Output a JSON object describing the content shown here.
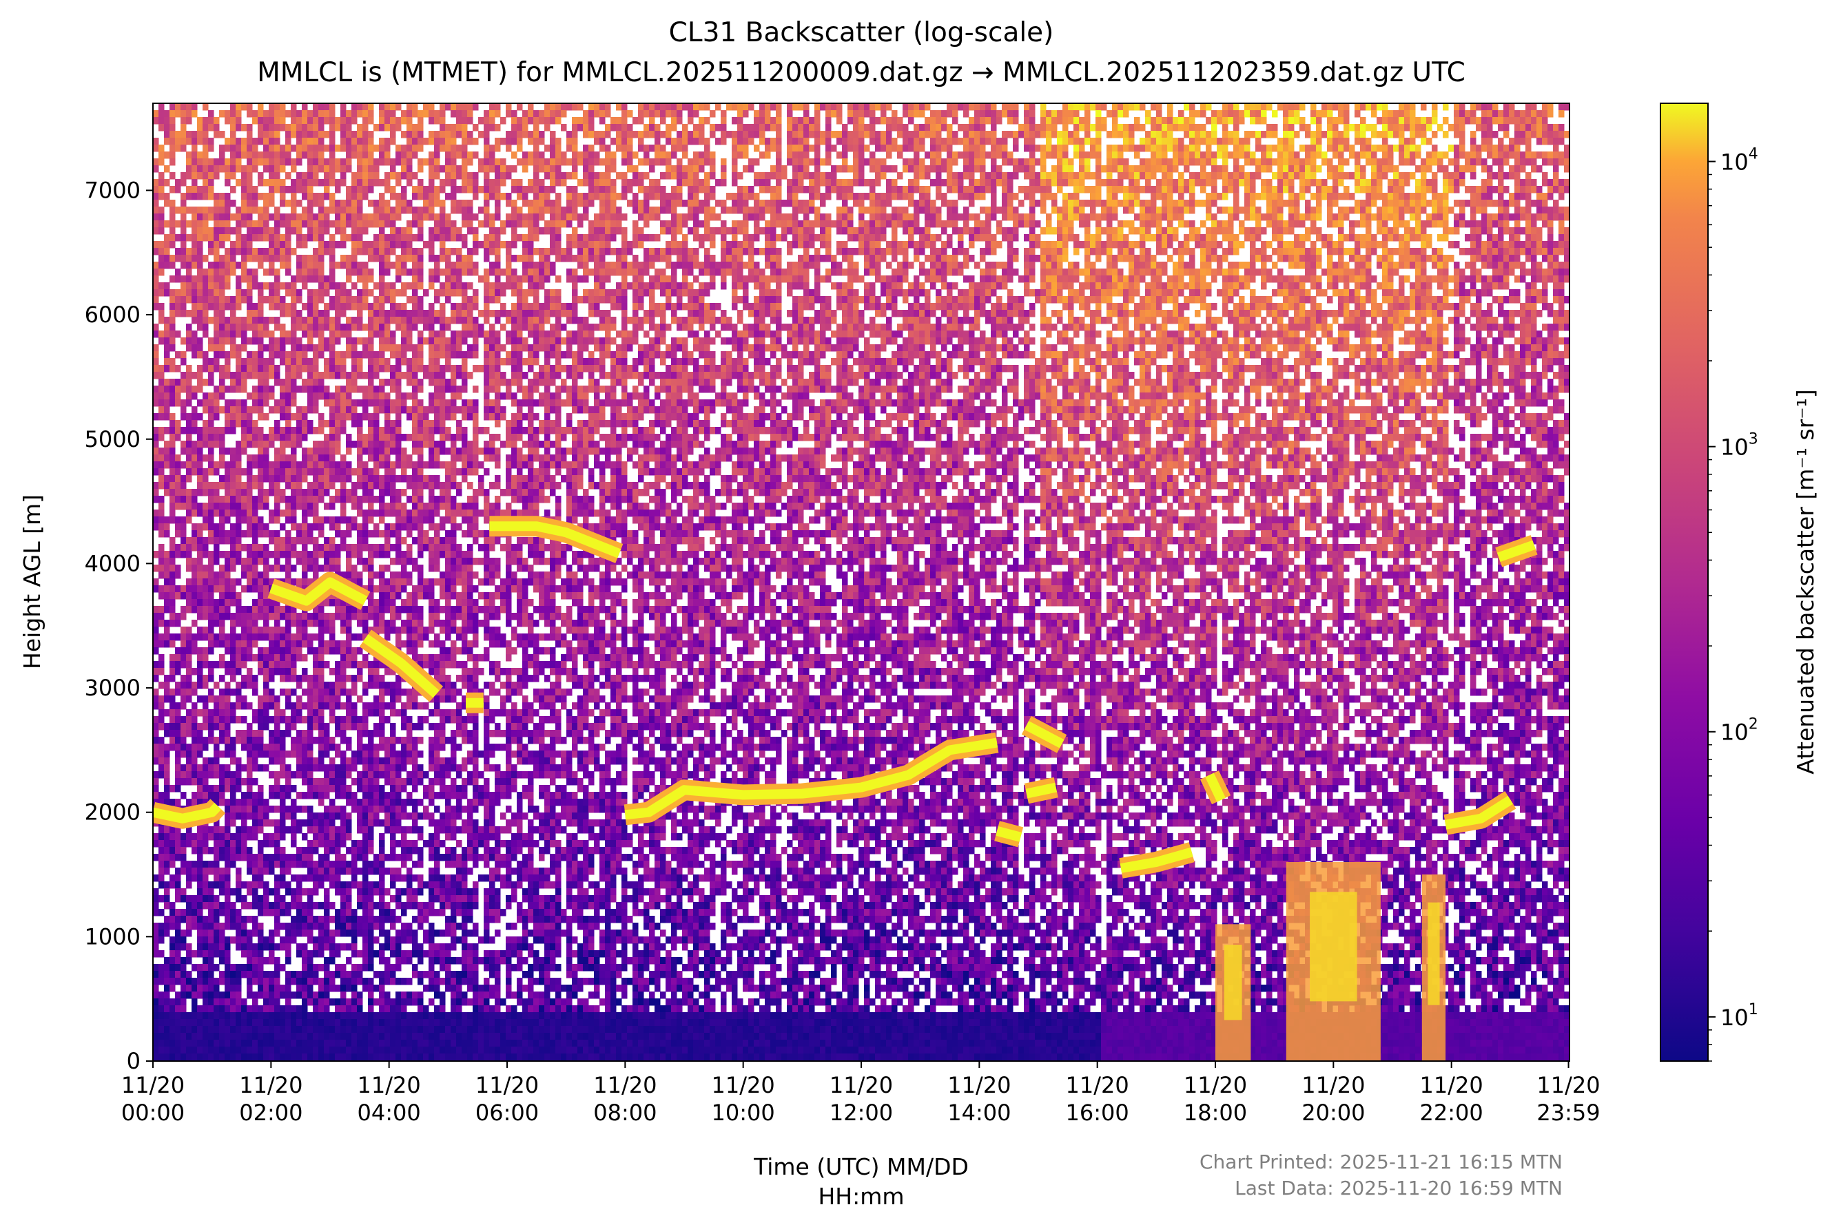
{
  "chart_data": {
    "type": "heatmap",
    "title": "CL31 Backscatter (log-scale)",
    "subtitle": "MMLCL is (MTMET) for MMLCL.202511200009.dat.gz → MMLCL.202511202359.dat.gz UTC",
    "xlabel": [
      "Time (UTC) MM/DD",
      "HH:mm"
    ],
    "ylabel": "Height AGL [m]",
    "colorbar_label": "Attenuated backscatter [m⁻¹ sr⁻¹]",
    "colormap": "plasma",
    "color_scale": "log",
    "x_range_hours": [
      0,
      24
    ],
    "ylim": [
      0,
      7700
    ],
    "clim": [
      7,
      16000
    ],
    "x_ticks": [
      {
        "hour": 0,
        "date": "11/20",
        "time": "00:00"
      },
      {
        "hour": 2,
        "date": "11/20",
        "time": "02:00"
      },
      {
        "hour": 4,
        "date": "11/20",
        "time": "04:00"
      },
      {
        "hour": 6,
        "date": "11/20",
        "time": "06:00"
      },
      {
        "hour": 8,
        "date": "11/20",
        "time": "08:00"
      },
      {
        "hour": 10,
        "date": "11/20",
        "time": "10:00"
      },
      {
        "hour": 12,
        "date": "11/20",
        "time": "12:00"
      },
      {
        "hour": 14,
        "date": "11/20",
        "time": "14:00"
      },
      {
        "hour": 16,
        "date": "11/20",
        "time": "16:00"
      },
      {
        "hour": 18,
        "date": "11/20",
        "time": "18:00"
      },
      {
        "hour": 20,
        "date": "11/20",
        "time": "20:00"
      },
      {
        "hour": 22,
        "date": "11/20",
        "time": "22:00"
      },
      {
        "hour": 23.983,
        "date": "11/20",
        "time": "23:59"
      }
    ],
    "y_ticks": [
      {
        "value": 0,
        "label": "0"
      },
      {
        "value": 1000,
        "label": "1000"
      },
      {
        "value": 2000,
        "label": "2000"
      },
      {
        "value": 3000,
        "label": "3000"
      },
      {
        "value": 4000,
        "label": "4000"
      },
      {
        "value": 5000,
        "label": "5000"
      },
      {
        "value": 6000,
        "label": "6000"
      },
      {
        "value": 7000,
        "label": "7000"
      }
    ],
    "colorbar_ticks": [
      {
        "value": 10,
        "label": "10",
        "exp": "1"
      },
      {
        "value": 100,
        "label": "10",
        "exp": "2"
      },
      {
        "value": 1000,
        "label": "10",
        "exp": "3"
      },
      {
        "value": 10000,
        "label": "10",
        "exp": "4"
      }
    ],
    "cloud_layers": [
      {
        "hours": [
          0.0,
          0.5,
          1.0,
          1.1
        ],
        "heights": [
          2000,
          1950,
          2000,
          2050
        ]
      },
      {
        "hours": [
          2.0,
          2.6,
          3.0,
          3.6
        ],
        "heights": [
          3800,
          3700,
          3850,
          3700
        ]
      },
      {
        "hours": [
          3.6,
          4.2,
          4.8
        ],
        "heights": [
          3400,
          3200,
          2950
        ]
      },
      {
        "hours": [
          5.3,
          5.6
        ],
        "heights": [
          2880,
          2880
        ]
      },
      {
        "hours": [
          5.7,
          6.5,
          7.0,
          7.9
        ],
        "heights": [
          4300,
          4300,
          4250,
          4080
        ]
      },
      {
        "hours": [
          8.0,
          8.4,
          9.0,
          10.0,
          11.0,
          12.0,
          12.8,
          13.5,
          14.3
        ],
        "heights": [
          1980,
          2000,
          2180,
          2140,
          2150,
          2200,
          2300,
          2500,
          2560
        ]
      },
      {
        "hours": [
          14.3,
          14.7
        ],
        "heights": [
          1850,
          1800
        ]
      },
      {
        "hours": [
          14.8,
          15.3
        ],
        "heights": [
          2150,
          2200
        ]
      },
      {
        "hours": [
          14.8,
          15.4
        ],
        "heights": [
          2700,
          2550
        ]
      },
      {
        "hours": [
          16.4,
          17.0,
          17.6
        ],
        "heights": [
          1550,
          1600,
          1680
        ]
      },
      {
        "hours": [
          17.9,
          18.1
        ],
        "heights": [
          2300,
          2100
        ]
      },
      {
        "hours": [
          21.9,
          22.5,
          23.0
        ],
        "heights": [
          1900,
          1950,
          2100
        ]
      },
      {
        "hours": [
          22.8,
          23.4
        ],
        "heights": [
          4050,
          4150
        ]
      }
    ],
    "precip_columns": [
      {
        "hours": [
          18.0,
          18.6
        ],
        "top": 1100
      },
      {
        "hours": [
          19.2,
          20.8
        ],
        "top": 1600
      },
      {
        "hours": [
          21.5,
          21.9
        ],
        "top": 1500
      }
    ],
    "footer": {
      "printed": "Chart Printed: 2025-11-21 16:15 MTN",
      "last_data": "Last Data: 2025-11-20 16:59 MTN"
    }
  }
}
